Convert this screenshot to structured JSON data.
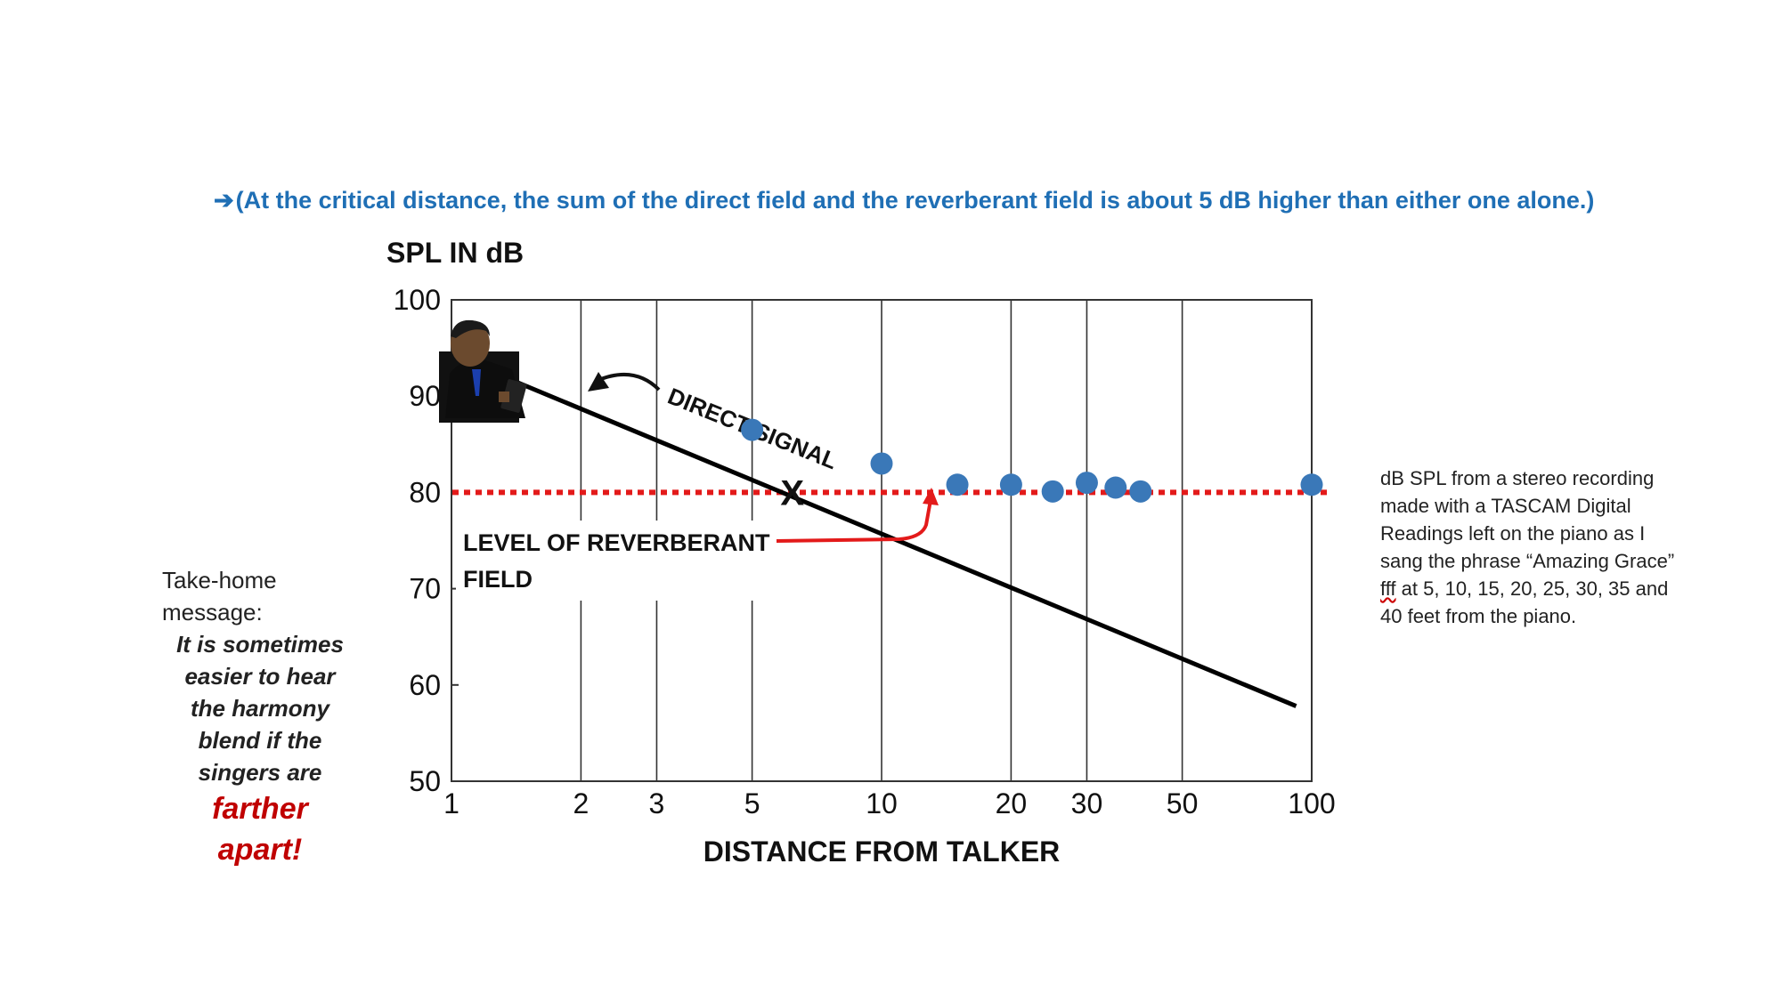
{
  "banner": {
    "arrow": "➔",
    "text": "(At the critical distance, the sum of the direct field and the reverberant field is about 5 dB higher than either one alone.)"
  },
  "chart_data": {
    "type": "scatter",
    "ylabel": "SPL IN dB",
    "xlabel": "DISTANCE FROM TALKER",
    "x_scale": "log",
    "xlim": [
      1,
      100
    ],
    "ylim": [
      50,
      100
    ],
    "x_ticks": [
      1,
      2,
      3,
      5,
      10,
      20,
      30,
      50,
      100
    ],
    "x_tick_labels": [
      "1",
      "2",
      "3",
      "5",
      "10",
      "20",
      "30",
      "50",
      "100"
    ],
    "y_ticks": [
      50,
      60,
      70,
      80,
      90,
      100
    ],
    "y_tick_labels": [
      "50",
      "60",
      "70",
      "80",
      "90",
      "100"
    ],
    "grid": "vertical",
    "direct_signal": {
      "label": "DIRECT SIGNAL",
      "x": [
        1.1,
        92
      ],
      "y": [
        93.5,
        57.8
      ]
    },
    "reverberant_field": {
      "label_line1": "LEVEL OF REVERBERANT",
      "label_line2": "FIELD",
      "y": 80
    },
    "critical_distance_marker": {
      "label": "X",
      "x": 6.2,
      "y": 80
    },
    "measurements": {
      "x": [
        5,
        10,
        15,
        20,
        25,
        30,
        35,
        40,
        100
      ],
      "y": [
        86.5,
        83,
        80.8,
        80.8,
        80.1,
        81,
        80.5,
        80.1,
        80.8
      ]
    },
    "colors": {
      "direct": "#000000",
      "reverberant": "#e31a1a",
      "points": "#3a78b8",
      "annotation": "#e31a1a"
    }
  },
  "takehome": {
    "heading_line1": "Take-home",
    "heading_line2": "message:",
    "lines": [
      "It is sometimes",
      "easier to hear",
      "the harmony",
      "blend if the",
      "singers are"
    ],
    "emph_lines": [
      "farther",
      "apart!"
    ]
  },
  "note": {
    "part1": "dB SPL from a stereo recording made with a TASCAM Digital Readings left on the piano as I sang the phrase “Amazing Grace” ",
    "fff": "fff",
    "part2": " at 5, 10, 15, 20, 25, 30, 35 and 40  feet from the piano."
  }
}
